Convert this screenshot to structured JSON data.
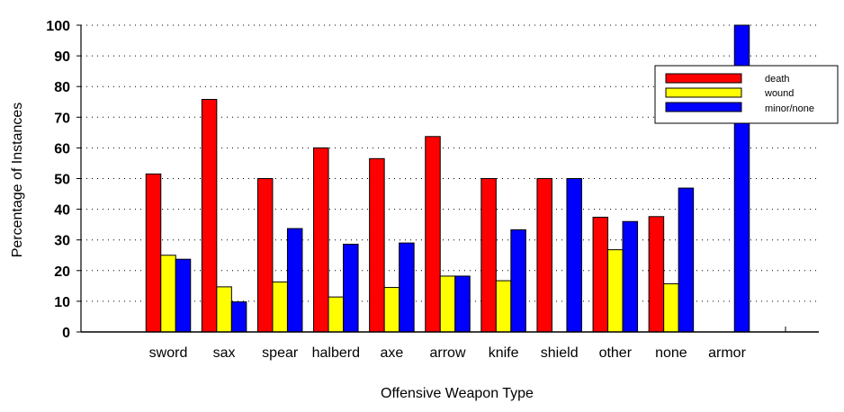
{
  "chart_data": {
    "type": "bar",
    "title": "",
    "xlabel": "Offensive Weapon Type",
    "ylabel": "Percentage of Instances",
    "ylim": [
      0,
      100
    ],
    "yticks": [
      0,
      10,
      20,
      30,
      40,
      50,
      60,
      70,
      80,
      90,
      100
    ],
    "grid": true,
    "legend_position": "top-right",
    "categories": [
      "sword",
      "sax",
      "spear",
      "halberd",
      "axe",
      "arrow",
      "knife",
      "shield",
      "other",
      "none",
      "armor"
    ],
    "series": [
      {
        "name": "death",
        "color": "#ff0000",
        "values": [
          51.5,
          75.8,
          50,
          60,
          56.5,
          63.7,
          50,
          50,
          37.4,
          37.6,
          0
        ]
      },
      {
        "name": "wound",
        "color": "#ffff00",
        "values": [
          25,
          14.7,
          16.3,
          11.4,
          14.5,
          18.2,
          16.7,
          0,
          26.8,
          15.7,
          0
        ]
      },
      {
        "name": "minor/none",
        "color": "#0000ff",
        "values": [
          23.7,
          9.8,
          33.7,
          28.6,
          29,
          18.2,
          33.3,
          50,
          36,
          46.9,
          100
        ]
      }
    ]
  }
}
